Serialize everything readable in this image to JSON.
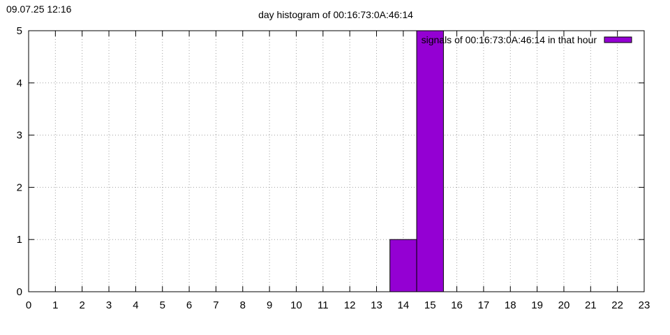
{
  "timestamp": "09.07.25 12:16",
  "chart_data": {
    "type": "bar",
    "title": "day histogram of 00:16:73:0A:46:14",
    "x": [
      0,
      1,
      2,
      3,
      4,
      5,
      6,
      7,
      8,
      9,
      10,
      11,
      12,
      13,
      14,
      15,
      16,
      17,
      18,
      19,
      20,
      21,
      22,
      23
    ],
    "series": [
      {
        "name": "signals of 00:16:73:0A:46:14 in that hour",
        "color": "#9400d3",
        "values": [
          0,
          0,
          0,
          0,
          0,
          0,
          0,
          0,
          0,
          0,
          0,
          0,
          0,
          0,
          1,
          5,
          0,
          0,
          0,
          0,
          0,
          0,
          0,
          0
        ]
      }
    ],
    "xlim": [
      0,
      23
    ],
    "xticks": [
      0,
      1,
      2,
      3,
      4,
      5,
      6,
      7,
      8,
      9,
      10,
      11,
      12,
      13,
      14,
      15,
      16,
      17,
      18,
      19,
      20,
      21,
      22,
      23
    ],
    "ylim": [
      0,
      5
    ],
    "yticks": [
      0,
      1,
      2,
      3,
      4,
      5
    ],
    "grid": true,
    "legend": "top-right"
  }
}
